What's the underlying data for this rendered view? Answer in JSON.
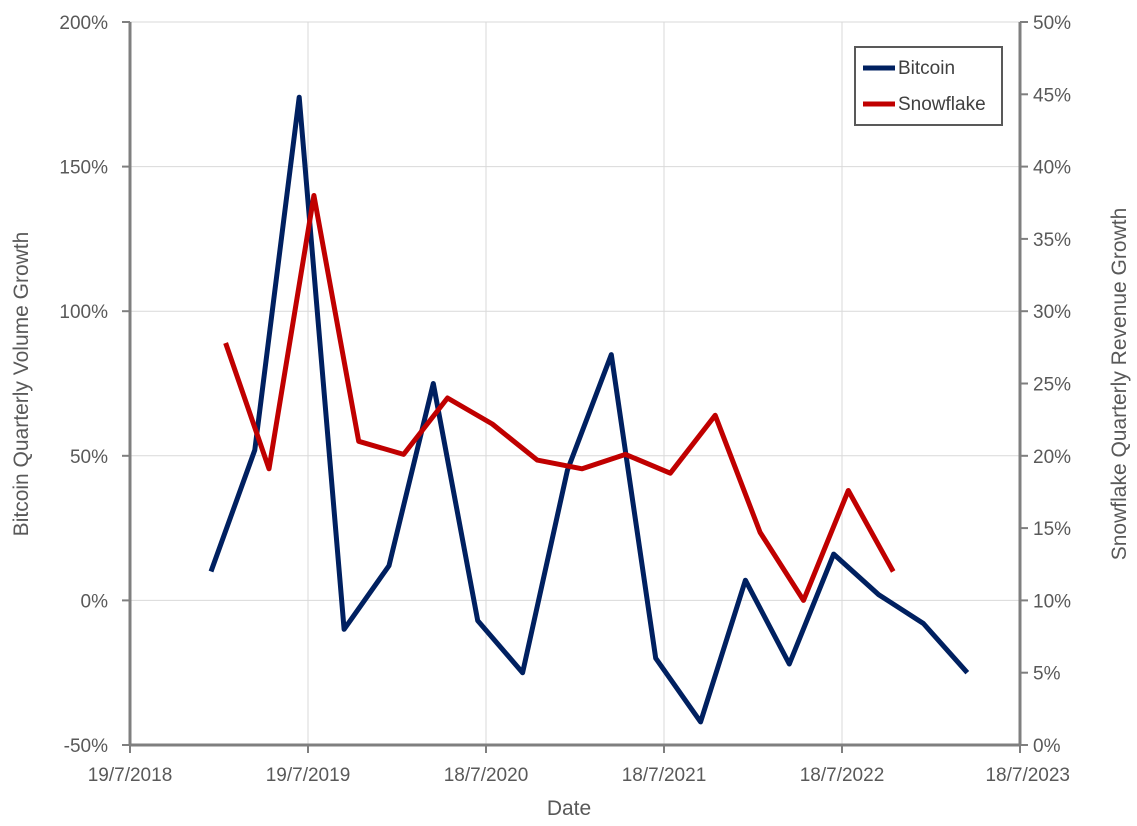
{
  "chart_data": {
    "type": "line",
    "xlabel": "Date",
    "ylabel": "Bitcoin Quarterly Volume Growth",
    "y2label": "Snowflake Quarterly Revenue Growth",
    "xlim": [
      "2018-07-19",
      "2023-07-18"
    ],
    "ylim": [
      -50,
      200
    ],
    "y2lim": [
      0,
      50
    ],
    "x_ticks": [
      "2018-07-19",
      "2019-07-19",
      "2020-07-18",
      "2021-07-18",
      "2022-07-18",
      "2023-07-18"
    ],
    "x_tick_labels": [
      "19/7/2018",
      "19/7/2019",
      "18/7/2020",
      "18/7/2021",
      "18/7/2022",
      "18/7/2023"
    ],
    "y_ticks": [
      -50,
      0,
      50,
      100,
      150,
      200
    ],
    "y_tick_labels": [
      "-50%",
      "0%",
      "50%",
      "100%",
      "150%",
      "200%"
    ],
    "y2_ticks": [
      0,
      5,
      10,
      15,
      20,
      25,
      30,
      35,
      40,
      45,
      50
    ],
    "y2_tick_labels": [
      "0%",
      "5%",
      "10%",
      "15%",
      "20%",
      "25%",
      "30%",
      "35%",
      "40%",
      "45%",
      "50%"
    ],
    "grid": true,
    "legend_position": "top-right",
    "series": [
      {
        "name": "Bitcoin",
        "axis": "left",
        "color": "#002060",
        "x": [
          "2019-01-01",
          "2019-04-01",
          "2019-07-01",
          "2019-10-01",
          "2020-01-01",
          "2020-04-01",
          "2020-07-01",
          "2020-10-01",
          "2021-01-01",
          "2021-04-01",
          "2021-07-01",
          "2021-10-01",
          "2022-01-01",
          "2022-04-01",
          "2022-07-01",
          "2022-10-01",
          "2023-01-01",
          "2023-04-01"
        ],
        "values": [
          10,
          52,
          174,
          -10,
          12,
          75,
          -7,
          -25,
          45,
          85,
          -20,
          -42,
          7,
          -22,
          16,
          2,
          -8,
          -25
        ]
      },
      {
        "name": "Snowflake",
        "axis": "right",
        "color": "#C00000",
        "x": [
          "2019-01-31",
          "2019-04-30",
          "2019-07-31",
          "2019-10-31",
          "2020-01-31",
          "2020-04-30",
          "2020-07-31",
          "2020-10-31",
          "2021-01-31",
          "2021-04-30",
          "2021-07-31",
          "2021-10-31",
          "2022-01-31",
          "2022-04-30",
          "2022-07-31",
          "2022-10-31"
        ],
        "values": [
          27.8,
          19.1,
          38,
          21,
          20.1,
          24,
          22.2,
          19.7,
          19.1,
          20.1,
          18.8,
          22.8,
          14.7,
          10,
          17.6,
          12
        ]
      }
    ]
  }
}
